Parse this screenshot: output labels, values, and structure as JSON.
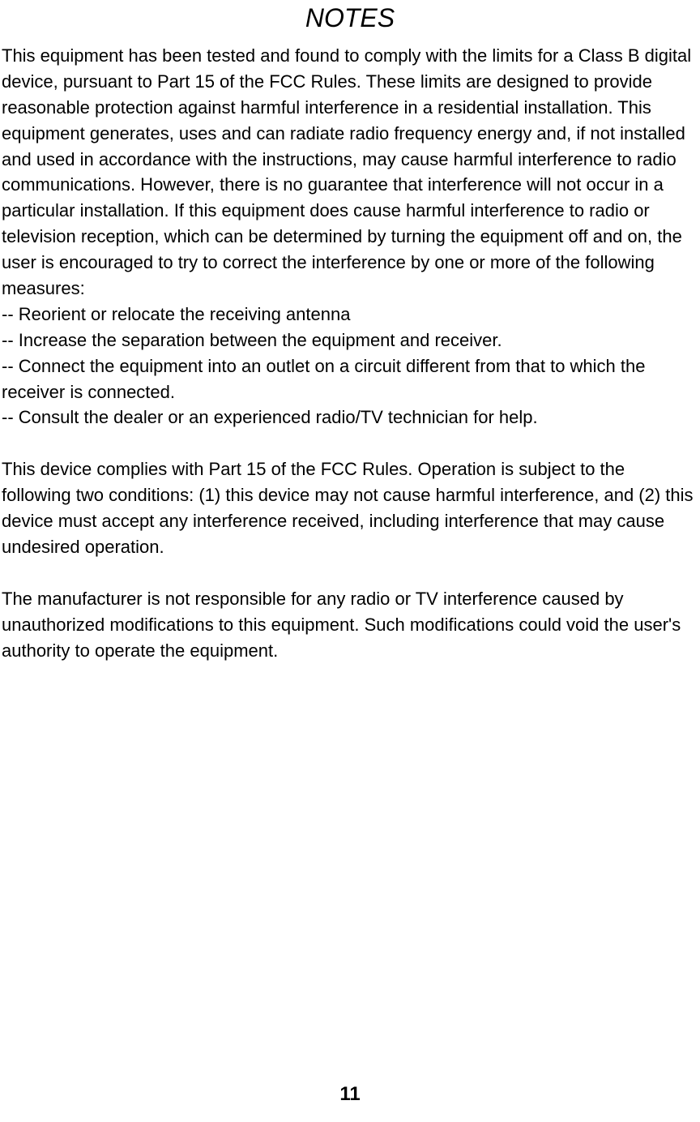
{
  "title": "NOTES",
  "paragraphs": {
    "p1": "This equipment has been tested and found to comply with the limits for a Class B digital device, pursuant to Part 15 of the FCC Rules. These limits are designed to provide reasonable protection against harmful interference in a residential installation. This equipment generates, uses and can radiate radio frequency energy and, if not installed and used in accordance with the instructions, may cause harmful interference to radio communications. However, there is no guarantee that interference will not occur in a particular installation. If this equipment does cause harmful interference to radio or television reception, which can be determined by turning the equipment off and on, the user is encouraged to try to correct the interference by one or more of the following measures:",
    "b1": "-- Reorient or relocate the receiving antenna",
    "b2": "-- Increase the separation between the equipment and receiver.",
    "b3": "-- Connect the equipment into an outlet on a circuit different from that to which the receiver is connected.",
    "b4": "-- Consult the dealer or an experienced radio/TV technician for help.",
    "p2": "This device complies with Part 15 of the FCC Rules. Operation is subject to the following two conditions: (1) this device may not cause harmful interference, and (2) this device must accept any interference received, including interference that may cause undesired operation.",
    "p3": "The manufacturer is not responsible for any radio or TV interference caused by unauthorized modifications to this equipment. Such modifications could void the user's authority to operate the equipment."
  },
  "page_number": "11",
  "style": {
    "background_color": "#ffffff",
    "text_color": "#000000",
    "title_fontsize": 32,
    "body_fontsize": 22,
    "page_number_fontsize": 24,
    "title_font_style": "italic",
    "line_height": 1.45
  }
}
